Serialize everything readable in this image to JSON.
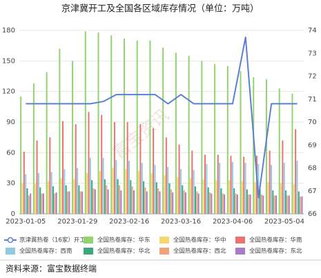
{
  "chart_data": {
    "type": "bar-line",
    "title": "京津冀开工及全国各区域库存情况（单位：万吨）",
    "source": "资料来源：富宝数据终端",
    "watermark": "富宝资讯",
    "categories": [
      "2023-01-05",
      null,
      null,
      null,
      "2023-01-29",
      null,
      null,
      null,
      "2023-02-16",
      null,
      null,
      null,
      "2023-03-16",
      null,
      null,
      null,
      "2023-04-06",
      null,
      null,
      null,
      "2023-05-04",
      null
    ],
    "ylim": [
      0,
      180
    ],
    "yticks": [
      0,
      30,
      60,
      90,
      120,
      150,
      180
    ],
    "y2lim": [
      66,
      74
    ],
    "y2ticks": [
      66,
      67,
      68,
      69,
      70,
      71,
      72,
      73,
      74
    ],
    "grid": true,
    "series": [
      {
        "name": "京津冀热卷（16家）开工率",
        "type": "line",
        "axis": "y2",
        "color": "#5b7fd4",
        "values": [
          70.8,
          70.8,
          70.8,
          70.8,
          70.8,
          70.8,
          70.9,
          71.2,
          71.2,
          71.2,
          71.2,
          70.8,
          71.2,
          70.8,
          70.8,
          70.8,
          70.8,
          73.7,
          66.7,
          70.8,
          70.8,
          70.8
        ]
      },
      {
        "name": "全国热卷库存：华东",
        "color": "#92d36e",
        "values": [
          115,
          128,
          139,
          162,
          150,
          179,
          178,
          175,
          172,
          170,
          170,
          163,
          158,
          155,
          150,
          147,
          145,
          140,
          134,
          132,
          123,
          118
        ]
      },
      {
        "name": "全国热卷库存：华中",
        "color": "#f5d76e",
        "values": [
          30,
          30,
          32,
          35,
          34,
          40,
          42,
          45,
          44,
          42,
          40,
          38,
          36,
          35,
          34,
          33,
          33,
          32,
          31,
          31,
          30,
          29
        ]
      },
      {
        "name": "全国热卷库存：华南",
        "color": "#f07070",
        "values": [
          61,
          72,
          75,
          91,
          88,
          100,
          97,
          90,
          90,
          88,
          84,
          75,
          68,
          62,
          58,
          58,
          57,
          56,
          57,
          62,
          72,
          83
        ]
      },
      {
        "name": "全国热卷库存：西南",
        "color": "#8ecae6",
        "values": [
          39,
          40,
          41,
          44,
          45,
          55,
          55,
          53,
          52,
          50,
          48,
          46,
          44,
          43,
          49,
          50,
          51,
          50,
          49,
          48,
          50,
          52
        ]
      },
      {
        "name": "全国热卷库存：华北",
        "color": "#3aaa7a",
        "values": [
          25,
          26,
          27,
          28,
          28,
          33,
          34,
          34,
          33,
          32,
          31,
          30,
          28,
          27,
          26,
          25,
          25,
          24,
          24,
          23,
          23,
          22
        ]
      },
      {
        "name": "全国热卷库存：西北",
        "color": "#f4a07a",
        "values": [
          18,
          20,
          20,
          22,
          22,
          25,
          28,
          28,
          27,
          26,
          25,
          24,
          23,
          22,
          21,
          20,
          20,
          19,
          19,
          18,
          18,
          17
        ]
      },
      {
        "name": "全国热卷库存：东北",
        "color": "#a87cc8",
        "values": [
          20,
          20,
          21,
          22,
          22,
          24,
          24,
          23,
          23,
          22,
          22,
          21,
          21,
          20,
          20,
          19,
          19,
          19,
          18,
          18,
          18,
          17
        ]
      }
    ]
  }
}
